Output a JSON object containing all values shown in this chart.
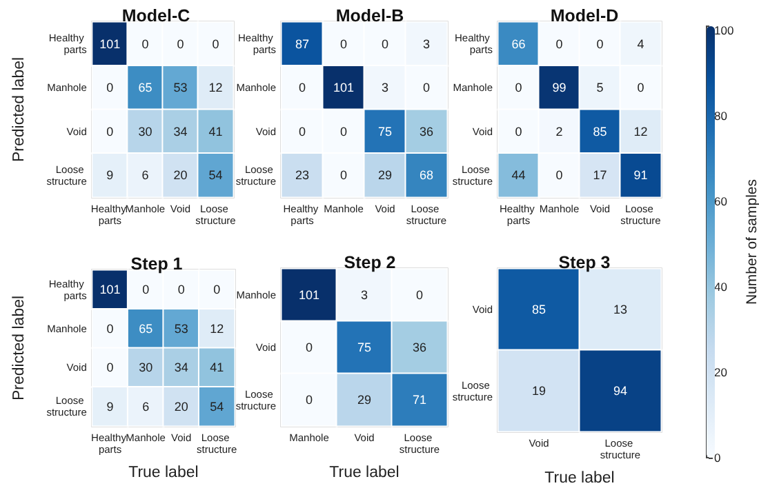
{
  "chart_data": [
    {
      "type": "heatmap",
      "title": "Model-C",
      "ylabel": "Predicted label",
      "categories": [
        "Healthy parts",
        "Manhole",
        "Void",
        "Loose structure"
      ],
      "y_categories": [
        "Healthy parts",
        "Manhole",
        "Void",
        "Loose structure"
      ],
      "cells": [
        [
          101,
          0,
          0,
          0
        ],
        [
          0,
          65,
          53,
          12
        ],
        [
          0,
          30,
          34,
          41
        ],
        [
          9,
          6,
          20,
          54
        ]
      ],
      "data_labels": true
    },
    {
      "type": "heatmap",
      "title": "Model-B",
      "categories": [
        "Healthy parts",
        "Manhole",
        "Void",
        "Loose structure"
      ],
      "y_categories": [
        "Healthy parts",
        "Manhole",
        "Void",
        "Loose structure"
      ],
      "cells": [
        [
          87,
          0,
          0,
          3
        ],
        [
          0,
          101,
          3,
          0
        ],
        [
          0,
          0,
          75,
          36
        ],
        [
          23,
          0,
          29,
          68
        ]
      ],
      "data_labels": true
    },
    {
      "type": "heatmap",
      "title": "Model-D",
      "categories": [
        "Healthy parts",
        "Manhole",
        "Void",
        "Loose structure"
      ],
      "y_categories": [
        "Healthy parts",
        "Manhole",
        "Void",
        "Loose structure"
      ],
      "cells": [
        [
          66,
          0,
          0,
          4
        ],
        [
          0,
          99,
          5,
          0
        ],
        [
          0,
          2,
          85,
          12
        ],
        [
          44,
          0,
          17,
          91
        ]
      ],
      "data_labels": true
    },
    {
      "type": "heatmap",
      "title": "Step 1",
      "xlabel": "True label",
      "ylabel": "Predicted label",
      "categories": [
        "Healthy parts",
        "Manhole",
        "Void",
        "Loose structure"
      ],
      "y_categories": [
        "Healthy parts",
        "Manhole",
        "Void",
        "Loose structure"
      ],
      "cells": [
        [
          101,
          0,
          0,
          0
        ],
        [
          0,
          65,
          53,
          12
        ],
        [
          0,
          30,
          34,
          41
        ],
        [
          9,
          6,
          20,
          54
        ]
      ],
      "data_labels": true
    },
    {
      "type": "heatmap",
      "title": "Step 2",
      "xlabel": "True label",
      "categories": [
        "Manhole",
        "Void",
        "Loose structure"
      ],
      "y_categories": [
        "Manhole",
        "Void",
        "Loose structure"
      ],
      "cells": [
        [
          101,
          3,
          0
        ],
        [
          0,
          75,
          36
        ],
        [
          0,
          29,
          71
        ]
      ],
      "data_labels": true
    },
    {
      "type": "heatmap",
      "title": "Step 3",
      "xlabel": "True label",
      "categories": [
        "Void",
        "Loose structure"
      ],
      "y_categories": [
        "Void",
        "Loose structure"
      ],
      "cells": [
        [
          85,
          13
        ],
        [
          19,
          94
        ]
      ],
      "clim": [
        0,
        101
      ],
      "cticks": [
        0,
        20,
        40,
        60,
        80,
        100
      ],
      "clabel": "Number of samples",
      "data_labels": true
    }
  ]
}
